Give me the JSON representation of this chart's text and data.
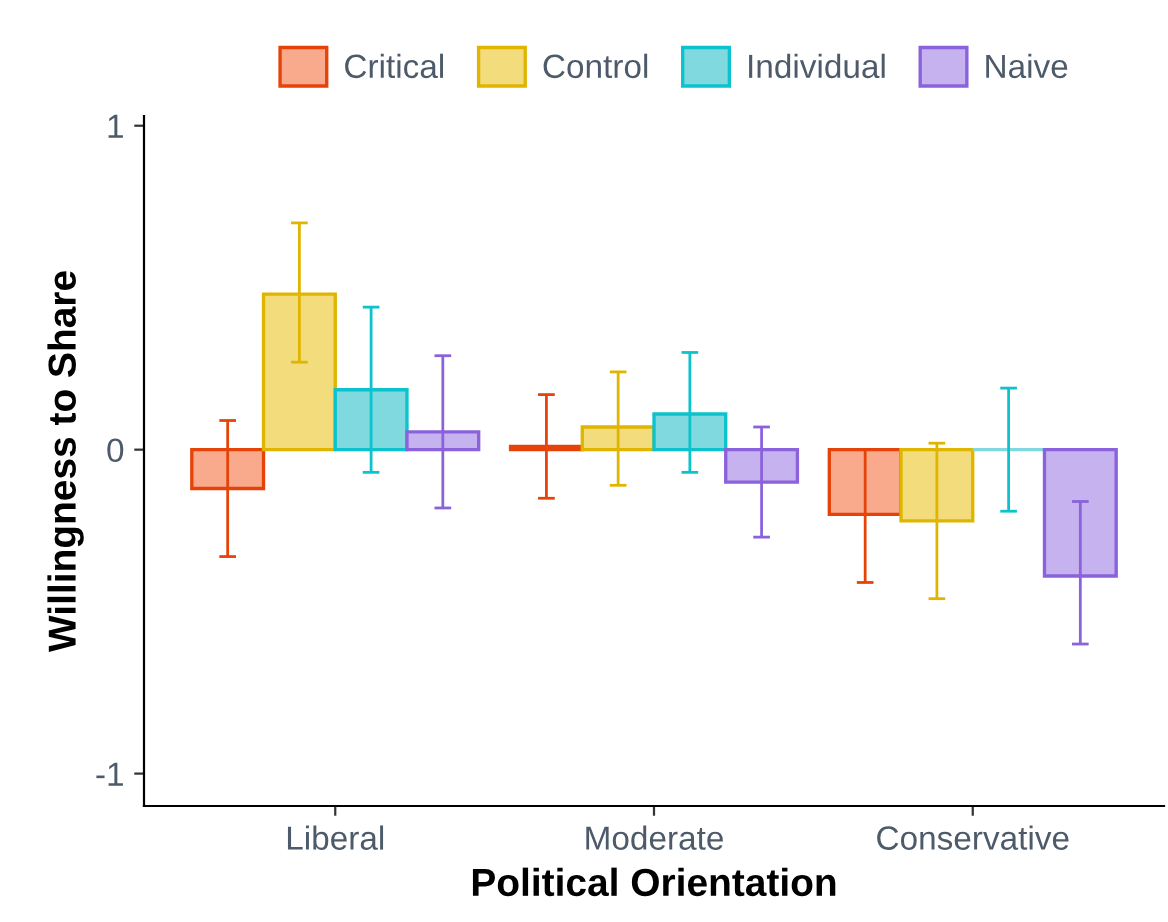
{
  "chart_data": {
    "type": "bar",
    "xlabel": "Political Orientation",
    "ylabel": "Willingness to Share",
    "categories": [
      "Liberal",
      "Moderate",
      "Conservative"
    ],
    "series": [
      {
        "name": "Critical",
        "color": "#f9a98c",
        "values": [
          -0.12,
          0.01,
          -0.2
        ],
        "errors": [
          [
            -0.33,
            0.09
          ],
          [
            -0.15,
            0.17
          ],
          [
            -0.41,
            0.0
          ]
        ]
      },
      {
        "name": "Control",
        "color": "#f2dc7c",
        "values": [
          0.48,
          0.07,
          -0.22
        ],
        "errors": [
          [
            0.27,
            0.7
          ],
          [
            -0.11,
            0.24
          ],
          [
            -0.46,
            0.02
          ]
        ]
      },
      {
        "name": "Individual",
        "color": "#7fd9de",
        "values": [
          0.185,
          0.11,
          0.0
        ],
        "errors": [
          [
            -0.07,
            0.44
          ],
          [
            -0.07,
            0.3
          ],
          [
            -0.19,
            0.19
          ]
        ]
      },
      {
        "name": "Naive",
        "color": "#c6b2ee",
        "values": [
          0.055,
          -0.1,
          -0.39
        ],
        "errors": [
          [
            -0.18,
            0.29
          ],
          [
            -0.27,
            0.07
          ],
          [
            -0.6,
            -0.16
          ]
        ]
      }
    ],
    "ylim": [
      -1.1,
      1.03
    ],
    "yticks": [
      -1,
      0,
      1
    ],
    "grid": false,
    "legend": "top"
  }
}
